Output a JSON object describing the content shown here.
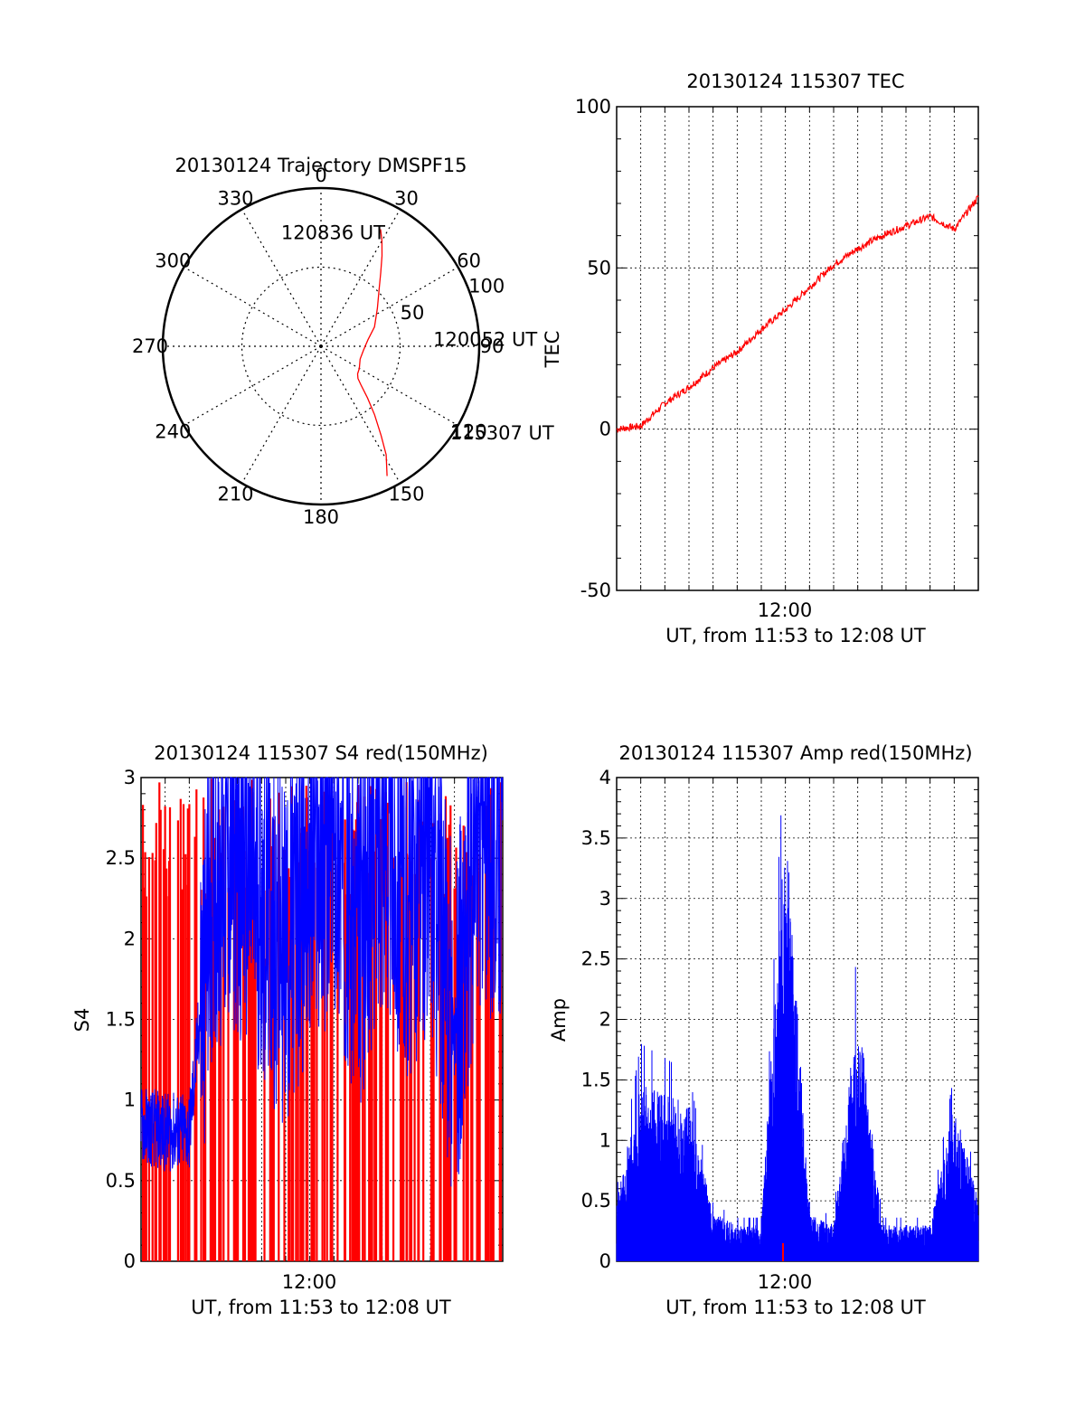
{
  "colors": {
    "red": "#ff0000",
    "blue": "#0000ff",
    "axis": "#000000"
  },
  "chart_data": [
    {
      "type": "polar",
      "title": "20130124 Trajectory DMSPF15",
      "angle_labels": [
        "0",
        "30",
        "60",
        "90",
        "120",
        "150",
        "180",
        "210",
        "240",
        "270",
        "300",
        "330"
      ],
      "radial_labels": [
        "50",
        "100"
      ],
      "rlim": [
        0,
        100
      ],
      "grid": true,
      "series": [
        {
          "color": "#ff0000",
          "points": [
            [
              153,
              92
            ],
            [
              149,
              80
            ],
            [
              146,
              68
            ],
            [
              142,
              55
            ],
            [
              138,
              44
            ],
            [
              134,
              35
            ],
            [
              131,
              31
            ],
            [
              127,
              29
            ],
            [
              120,
              28
            ],
            [
              108,
              26
            ],
            [
              95,
              27
            ],
            [
              82,
              30
            ],
            [
              70,
              36
            ],
            [
              56,
              43
            ],
            [
              46,
              51
            ],
            [
              39,
              60
            ],
            [
              34,
              69
            ],
            [
              30,
              77
            ],
            [
              27,
              83
            ]
          ]
        }
      ],
      "annotations": [
        {
          "text": "120836 UT",
          "theta": 340,
          "r": 77
        },
        {
          "text": "120052 UT",
          "theta": 86,
          "r": 70
        },
        {
          "text": "115307 UT",
          "theta": 124,
          "r": 97
        }
      ]
    },
    {
      "type": "line",
      "title": "20130124 115307 TEC",
      "ylabel": "TEC",
      "xlabel": "UT, from 11:53 to 12:08 UT",
      "x_tick_labels": [
        "12:00"
      ],
      "y_tick_labels": [
        "-50",
        "0",
        "50",
        "100"
      ],
      "ylim": [
        -50,
        100
      ],
      "grid": true,
      "series": [
        {
          "color": "#ff0000",
          "x": [
            "11:53",
            "11:54",
            "11:55",
            "11:56",
            "11:57",
            "11:58",
            "11:59",
            "12:00",
            "12:01",
            "12:02",
            "12:03",
            "12:04",
            "12:05",
            "12:06",
            "12:07",
            "12:08"
          ],
          "values": [
            0,
            1,
            8,
            13,
            19,
            24,
            31,
            37,
            44,
            51,
            56,
            60,
            63,
            66,
            62,
            72
          ]
        }
      ]
    },
    {
      "type": "line",
      "title": "20130124 115307 S4 red(150MHz)",
      "ylabel": "S4",
      "xlabel": "UT, from 11:53 to 12:08 UT",
      "x_tick_labels": [
        "12:00"
      ],
      "y_tick_labels": [
        "0",
        "0.5",
        "1",
        "1.5",
        "2",
        "2.5",
        "3"
      ],
      "ylim": [
        0,
        3
      ],
      "grid": true,
      "series": [
        {
          "color": "#0000ff",
          "x": [
            "11:53",
            "11:54",
            "11:55",
            "11:56",
            "11:57",
            "11:58",
            "11:59",
            "12:00",
            "12:01",
            "12:02",
            "12:03",
            "12:04",
            "12:05",
            "12:06",
            "12:07",
            "12:08"
          ],
          "values": [
            0.85,
            0.8,
            0.8,
            2.4,
            2.5,
            2.2,
            1.9,
            2.4,
            2.6,
            2.0,
            2.7,
            2.2,
            2.5,
            1.4,
            2.6,
            2.6
          ]
        },
        {
          "color": "#ff0000",
          "x": [
            "11:53",
            "11:54",
            "11:55",
            "11:56",
            "11:57",
            "11:58",
            "11:59",
            "12:00",
            "12:01",
            "12:02",
            "12:03",
            "12:04",
            "12:05",
            "12:06",
            "12:07",
            "12:08"
          ],
          "values": [
            3,
            3,
            3,
            3,
            3,
            3,
            3,
            3,
            3,
            3,
            3,
            3,
            3,
            3,
            3,
            3
          ]
        }
      ]
    },
    {
      "type": "line",
      "title": "20130124 115307 Amp red(150MHz)",
      "ylabel": "Amp",
      "xlabel": "UT, from 11:53 to 12:08 UT",
      "x_tick_labels": [
        "12:00"
      ],
      "y_tick_labels": [
        "0",
        "0.5",
        "1",
        "1.5",
        "2",
        "2.5",
        "3",
        "3.5",
        "4"
      ],
      "ylim": [
        0,
        4
      ],
      "grid": true,
      "series": [
        {
          "color": "#0000ff",
          "x": [
            "11:53",
            "11:54",
            "11:55",
            "11:56",
            "11:57",
            "11:58",
            "11:59",
            "12:00",
            "12:01",
            "12:02",
            "12:03",
            "12:04",
            "12:05",
            "12:06",
            "12:07",
            "12:08"
          ],
          "values": [
            0.5,
            1.5,
            1.4,
            1.3,
            0.4,
            0.3,
            0.3,
            3.7,
            0.4,
            0.3,
            2.2,
            0.3,
            0.3,
            0.3,
            1.3,
            0.5
          ]
        },
        {
          "color": "#ff0000",
          "x": [
            "12:00"
          ],
          "values": [
            0.15
          ]
        }
      ]
    }
  ]
}
